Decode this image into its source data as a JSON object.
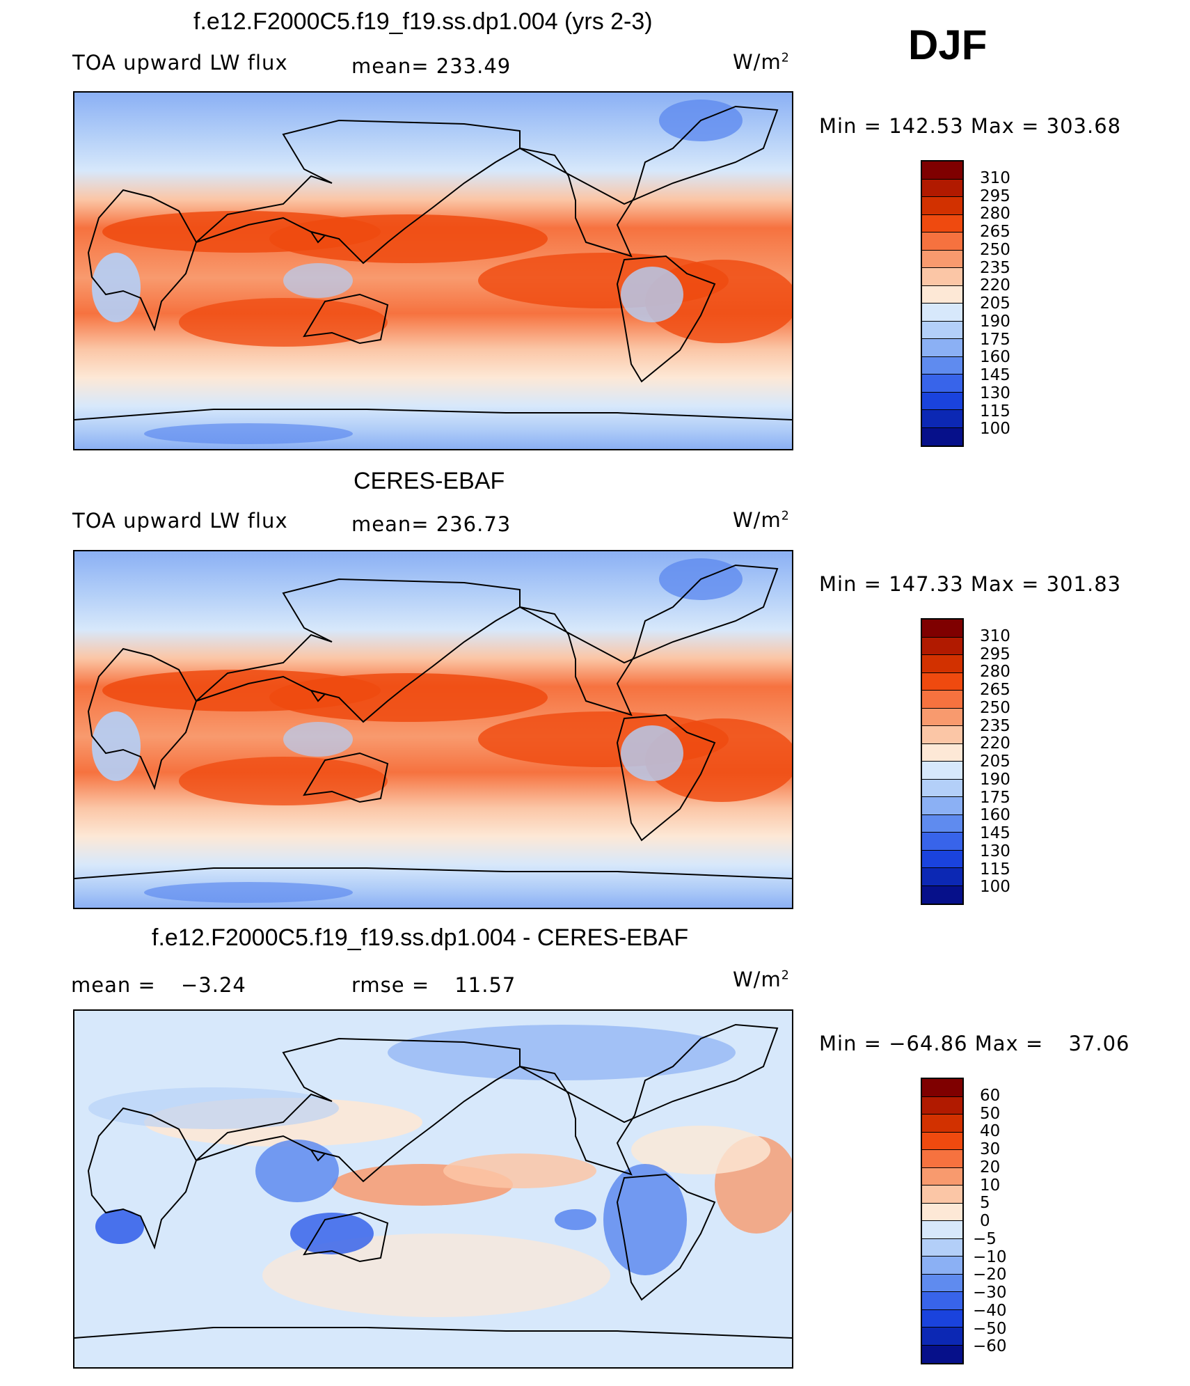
{
  "season": "DJF",
  "units_base": "W/m",
  "units_exp": "2",
  "panels": [
    {
      "title": "f.e12.F2000C5.f19_f19.ss.dp1.004 (yrs 2-3)",
      "left_label": "TOA upward LW flux",
      "stat_label": "mean=",
      "stat_value": "233.49",
      "min_label": "Min",
      "min_value": "142.53",
      "max_label": "Max",
      "max_value": "303.68",
      "colorbar_labels": [
        "310",
        "295",
        "280",
        "265",
        "250",
        "235",
        "220",
        "205",
        "190",
        "175",
        "160",
        "145",
        "130",
        "115",
        "100"
      ]
    },
    {
      "title": "CERES-EBAF",
      "left_label": "TOA upward LW flux",
      "stat_label": "mean=",
      "stat_value": "236.73",
      "min_label": "Min",
      "min_value": "147.33",
      "max_label": "Max",
      "max_value": "301.83",
      "colorbar_labels": [
        "310",
        "295",
        "280",
        "265",
        "250",
        "235",
        "220",
        "205",
        "190",
        "175",
        "160",
        "145",
        "130",
        "115",
        "100"
      ]
    },
    {
      "title": "f.e12.F2000C5.f19_f19.ss.dp1.004 - CERES-EBAF",
      "left_label": "mean =",
      "left_value": "−3.24",
      "stat_label": "rmse =",
      "stat_value": "11.57",
      "min_label": "Min",
      "min_value": "−64.86",
      "max_label": "Max",
      "max_value": "37.06",
      "colorbar_labels": [
        "60",
        "50",
        "40",
        "30",
        "20",
        "10",
        "5",
        "0",
        "−5",
        "−10",
        "−20",
        "−30",
        "−40",
        "−50",
        "−60"
      ]
    }
  ],
  "colors": {
    "palette": [
      "#7f0000",
      "#b11a00",
      "#d23100",
      "#ef4a0f",
      "#f6723f",
      "#f89a6e",
      "#fbc6a6",
      "#fde8d6",
      "#d7e8fb",
      "#b3cff8",
      "#8bb0f4",
      "#5f8bef",
      "#3864ea",
      "#1a43dd",
      "#0c28b4",
      "#06108a"
    ],
    "coastline": "#000000"
  }
}
